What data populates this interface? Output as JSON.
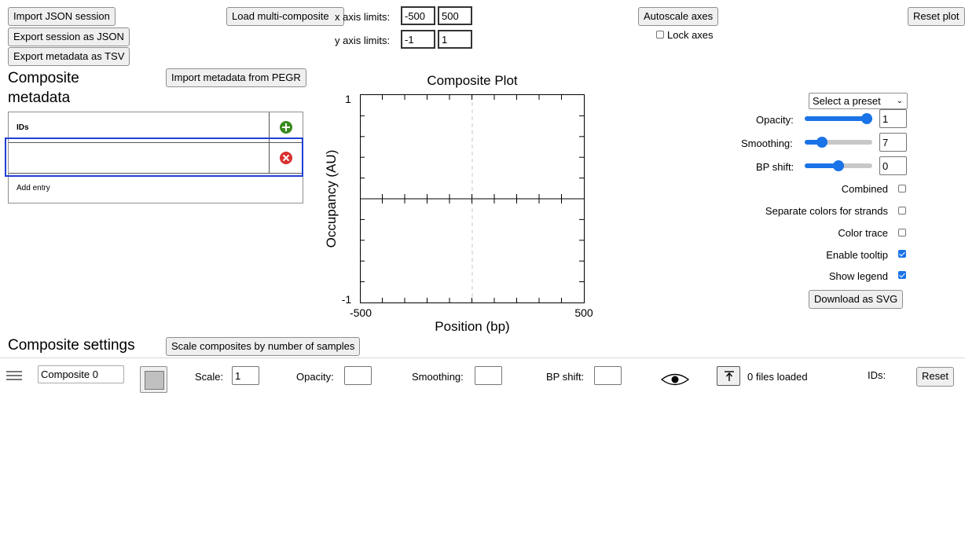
{
  "top_buttons": {
    "import_json": "Import JSON session",
    "export_json": "Export session as JSON",
    "export_tsv": "Export metadata as TSV",
    "load_multi": "Load multi-composite",
    "autoscale": "Autoscale axes",
    "reset_plot": "Reset plot"
  },
  "axes": {
    "x_label": "x axis limits:",
    "x_min": "-500",
    "x_max": "500",
    "y_label": "y axis limits:",
    "y_min": "-1",
    "y_max": "1",
    "lock_label": "Lock axes",
    "lock_checked": false
  },
  "metadata": {
    "heading": "Composite metadata",
    "import_pegr": "Import metadata from PEGR",
    "column_header": "IDs",
    "entry_value": "",
    "add_entry": "Add entry",
    "add_icon_color": "#3a8a1f",
    "remove_icon_color": "#d93030",
    "selection_color": "#1f3fd6"
  },
  "plot": {
    "title": "Composite Plot",
    "x_axis_label": "Position (bp)",
    "y_axis_label": "Occupancy (AU)",
    "x_ticks": [
      "-500",
      "500"
    ],
    "y_ticks": [
      "1",
      "-1"
    ]
  },
  "settings_panel": {
    "preset_placeholder": "Select a preset",
    "opacity_label": "Opacity:",
    "opacity_value": "1",
    "opacity_level": 1.0,
    "smoothing_label": "Smoothing:",
    "smoothing_value": "7",
    "smoothing_level": 0.25,
    "bp_shift_label": "BP shift:",
    "bp_shift_value": "0",
    "bp_shift_level": 0.5,
    "combined_label": "Combined",
    "separate_label": "Separate colors for strands",
    "color_trace_label": "Color trace",
    "tooltip_label": "Enable tooltip",
    "legend_label": "Show legend",
    "download_svg": "Download as SVG",
    "checkbox_accent": "#1a73e8"
  },
  "composite_settings": {
    "heading": "Composite settings",
    "scale_button": "Scale composites by number of samples",
    "row": {
      "name": "Composite 0",
      "swatch_color": "#c0c0c0",
      "scale_label": "Scale:",
      "scale_value": "1",
      "opacity_label": "Opacity:",
      "opacity_value": "",
      "smoothing_label": "Smoothing:",
      "smoothing_value": "",
      "bp_shift_label": "BP shift:",
      "bp_shift_value": "",
      "files_loaded": "0 files loaded",
      "ids_label": "IDs:",
      "reset": "Reset",
      "upload_icon": "upload-icon",
      "eye_icon": "eye-icon"
    }
  }
}
